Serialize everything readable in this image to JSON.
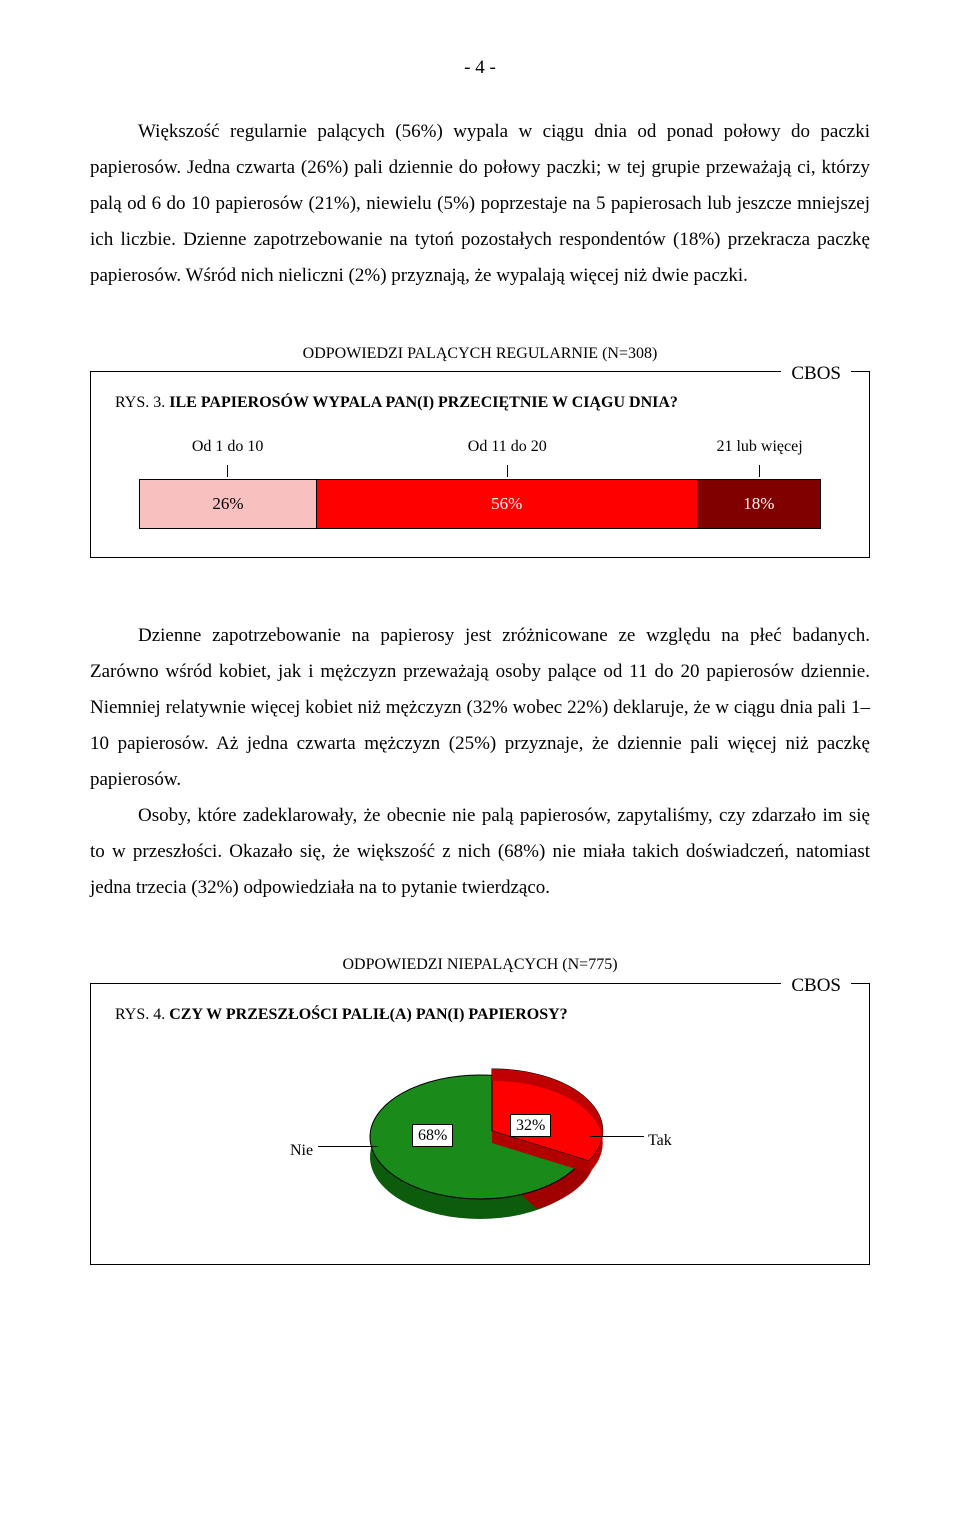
{
  "page_number": "- 4 -",
  "para1": "Większość regularnie palących (56%) wypala w ciągu dnia od ponad połowy do paczki papierosów. Jedna czwarta (26%) pali dziennie do połowy paczki; w tej grupie przeważają ci, którzy palą od 6 do 10 papierosów (21%), niewielu (5%) poprzestaje na 5 papierosach lub jeszcze mniejszej ich liczbie. Dzienne zapotrzebowanie na tytoń pozostałych respondentów (18%) przekracza paczkę papierosów. Wśród nich nieliczni (2%) przyznają, że wypalają więcej niż dwie paczki.",
  "fig3": {
    "caption_small": "ODPOWIEDZI PALĄCYCH REGULARNIE (N=308)",
    "cbos": "CBOS",
    "title_prefix": "RYS. 3. ",
    "title_bold": "ILE PAPIEROSÓW WYPALA PAN(I) PRZECIĘTNIE W CIĄGU DNIA?",
    "legend": [
      "Od 1 do 10",
      "Od 11 do 20",
      "21 lub więcej"
    ],
    "segments": [
      {
        "label": "26%",
        "width": 26,
        "color": "#f9c0c0",
        "text_dark": true
      },
      {
        "label": "56%",
        "width": 56,
        "color": "#ff0000",
        "text_dark": false
      },
      {
        "label": "18%",
        "width": 18,
        "color": "#800000",
        "text_dark": false
      }
    ]
  },
  "para2": "Dzienne zapotrzebowanie na papierosy jest zróżnicowane ze względu na płeć badanych. Zarówno wśród kobiet, jak i mężczyzn przeważają osoby palące od 11 do 20 papierosów dziennie. Niemniej relatywnie więcej kobiet niż mężczyzn (32% wobec 22%) deklaruje, że w ciągu dnia pali 1–10 papierosów. Aż jedna czwarta mężczyzn (25%) przyznaje, że dziennie pali więcej niż paczkę papierosów.",
  "para3": "Osoby, które zadeklarowały, że obecnie nie palą papierosów, zapytaliśmy, czy zdarzało im się to w przeszłości. Okazało się, że większość z nich (68%) nie miała takich doświadczeń, natomiast jedna trzecia (32%) odpowiedziała na to pytanie twierdząco.",
  "fig4": {
    "caption_small": "ODPOWIEDZI NIEPALĄCYCH (N=775)",
    "cbos": "CBOS",
    "title_prefix": "RYS. 4. ",
    "title_bold": "CZY W PRZESZŁOŚCI PALIŁ(A) PAN(I) PAPIEROSY?",
    "slices": [
      {
        "name": "Nie",
        "value": 68,
        "label": "68%",
        "color": "#1a8a1a"
      },
      {
        "name": "Tak",
        "value": 32,
        "label": "32%",
        "color": "#ff0000"
      }
    ]
  }
}
